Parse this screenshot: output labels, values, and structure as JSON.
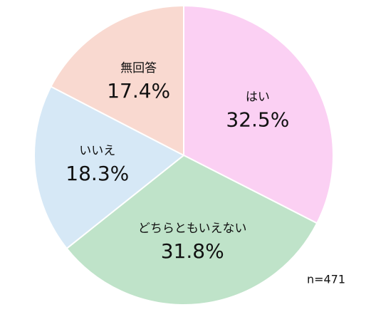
{
  "chart_data": {
    "type": "pie",
    "categories": [
      "はい",
      "どちらともいえない",
      "いいえ",
      "無回答"
    ],
    "values": [
      32.5,
      31.8,
      18.3,
      17.4
    ],
    "value_labels": [
      "32.5%",
      "31.8%",
      "18.3%",
      "17.4%"
    ],
    "colors": [
      "#fbd0f3",
      "#bfe3c9",
      "#d6e8f6",
      "#f9d9d0"
    ],
    "annotation": "n=471"
  }
}
